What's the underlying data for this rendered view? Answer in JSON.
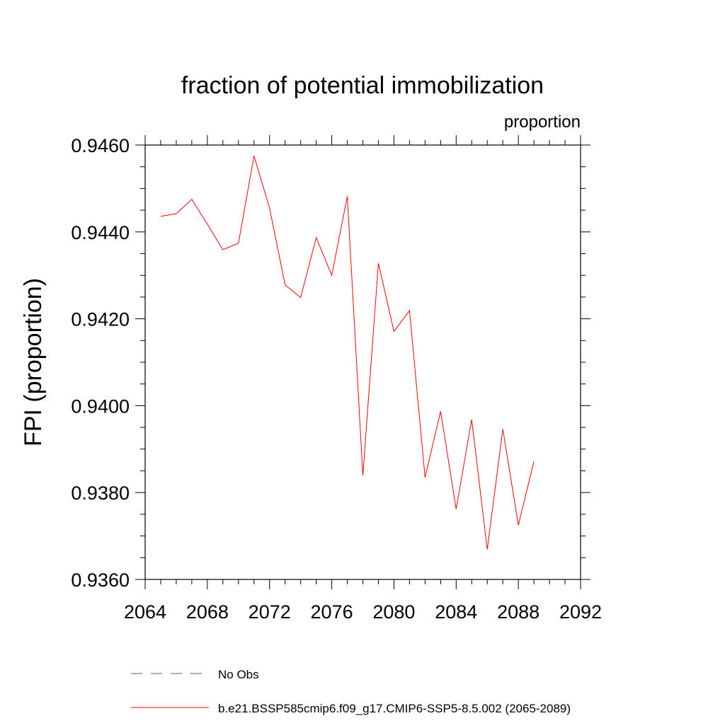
{
  "chart_data": {
    "type": "line",
    "title": "fraction of potential immobilization",
    "units_label": "proportion",
    "xlabel": "",
    "ylabel": "FPI  (proportion)",
    "xlim": [
      2064,
      2092
    ],
    "ylim": [
      0.936,
      0.946
    ],
    "x_ticks": [
      2064,
      2068,
      2072,
      2076,
      2080,
      2084,
      2088,
      2092
    ],
    "x_tick_labels": [
      "2064",
      "2068",
      "2072",
      "2076",
      "2080",
      "2084",
      "2088",
      "2092"
    ],
    "y_ticks": [
      0.936,
      0.938,
      0.94,
      0.942,
      0.944,
      0.946
    ],
    "y_tick_labels": [
      "0.9360",
      "0.9380",
      "0.9400",
      "0.9420",
      "0.9440",
      "0.9460"
    ],
    "grid": false,
    "legend_position": "bottom",
    "series": [
      {
        "name": "b.e21.BSSP585cmip6.f09_g17.CMIP6-SSP5-8.5.002 (2065-2089)",
        "color": "#ff0000",
        "style": "solid",
        "x": [
          2065,
          2066,
          2067,
          2068,
          2069,
          2070,
          2071,
          2072,
          2073,
          2074,
          2075,
          2076,
          2077,
          2078,
          2079,
          2080,
          2081,
          2082,
          2083,
          2084,
          2085,
          2086,
          2087,
          2088,
          2089
        ],
        "values": [
          0.94436,
          0.94442,
          0.94475,
          0.94418,
          0.94359,
          0.94374,
          0.94575,
          0.94455,
          0.94278,
          0.94249,
          0.94387,
          0.943,
          0.94482,
          0.93839,
          0.94328,
          0.94171,
          0.94219,
          0.93835,
          0.93987,
          0.93762,
          0.93968,
          0.93669,
          0.93946,
          0.93725,
          0.93872
        ]
      }
    ],
    "legend": [
      {
        "label": "No Obs",
        "color": "#5a5aa8",
        "style": "dashed"
      },
      {
        "label": "b.e21.BSSP585cmip6.f09_g17.CMIP6-SSP5-8.5.002 (2065-2089)",
        "color": "#ff0000",
        "style": "solid"
      }
    ]
  }
}
